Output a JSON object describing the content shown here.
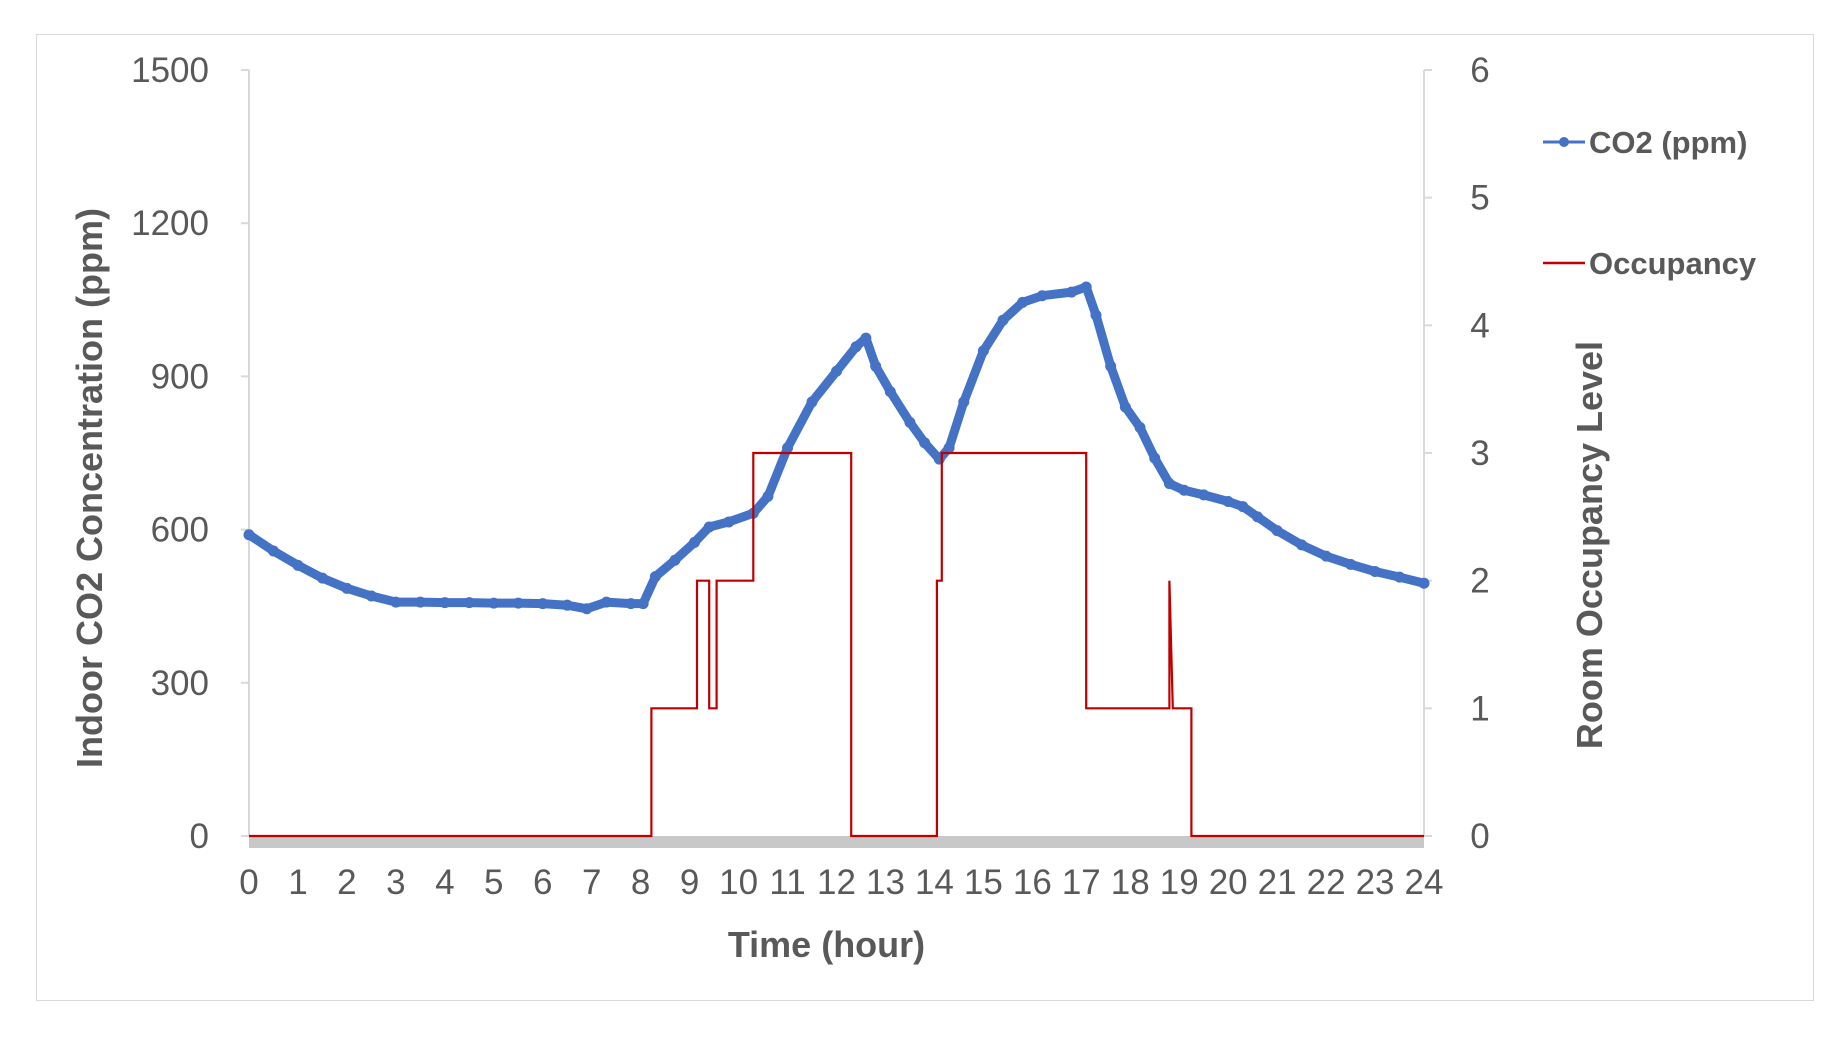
{
  "chart_data": {
    "type": "line",
    "title": "",
    "xlabel": "Time (hour)",
    "ylabel": "Indoor CO2 Concentration (ppm)",
    "y2label": "Room Occupancy Level",
    "xlim": [
      0,
      24
    ],
    "ylim": [
      0,
      1500
    ],
    "y2lim": [
      0,
      6
    ],
    "x_ticks": [
      0,
      1,
      2,
      3,
      4,
      5,
      6,
      7,
      8,
      9,
      10,
      11,
      12,
      13,
      14,
      15,
      16,
      17,
      18,
      19,
      20,
      21,
      22,
      23,
      24
    ],
    "y_ticks": [
      0,
      300,
      600,
      900,
      1200,
      1500
    ],
    "y2_ticks": [
      0,
      1,
      2,
      3,
      4,
      5,
      6
    ],
    "legend_position": "right",
    "gridlines": false,
    "series": [
      {
        "name": "CO2 (ppm)",
        "axis": "left",
        "color": "#4472c4",
        "marker": "circle",
        "x": [
          0,
          0.5,
          1,
          1.5,
          2,
          2.5,
          3,
          3.5,
          4,
          4.5,
          5,
          5.5,
          6,
          6.5,
          6.9,
          7.3,
          7.8,
          8.05,
          8.3,
          8.7,
          9.1,
          9.4,
          9.8,
          10.3,
          10.6,
          11,
          11.5,
          12,
          12.4,
          12.6,
          12.8,
          13.1,
          13.5,
          13.8,
          14.1,
          14.3,
          14.6,
          15,
          15.4,
          15.8,
          16.2,
          16.8,
          17.1,
          17.3,
          17.6,
          17.9,
          18.2,
          18.5,
          18.8,
          19.1,
          19.5,
          20,
          20.3,
          20.6,
          21,
          21.5,
          22,
          22.5,
          23,
          23.5,
          24
        ],
        "values": [
          590,
          558,
          530,
          505,
          485,
          470,
          458,
          458,
          457,
          457,
          456,
          456,
          455,
          452,
          445,
          458,
          455,
          455,
          508,
          540,
          575,
          605,
          615,
          632,
          665,
          760,
          850,
          910,
          958,
          975,
          920,
          870,
          810,
          770,
          738,
          760,
          850,
          950,
          1010,
          1045,
          1058,
          1065,
          1075,
          1020,
          920,
          840,
          800,
          740,
          690,
          677,
          668,
          655,
          645,
          625,
          598,
          570,
          548,
          532,
          518,
          507,
          495
        ]
      },
      {
        "name": "Occupancy",
        "axis": "right",
        "color": "#c00000",
        "step": true,
        "x": [
          0,
          8.22,
          8.22,
          9.15,
          9.15,
          9.4,
          9.4,
          9.55,
          9.55,
          10.3,
          10.3,
          11.45,
          11.45,
          12.3,
          12.3,
          14.05,
          14.05,
          14.15,
          14.15,
          17.1,
          17.1,
          18.8,
          18.8,
          18.87,
          18.87,
          19.25,
          19.25,
          24
        ],
        "values": [
          0,
          0,
          1,
          1,
          2,
          2,
          1,
          1,
          2,
          2,
          3,
          3,
          3,
          3,
          0,
          0,
          2,
          2,
          3,
          3,
          1,
          1,
          2,
          1,
          1,
          1,
          0,
          0
        ]
      }
    ]
  }
}
